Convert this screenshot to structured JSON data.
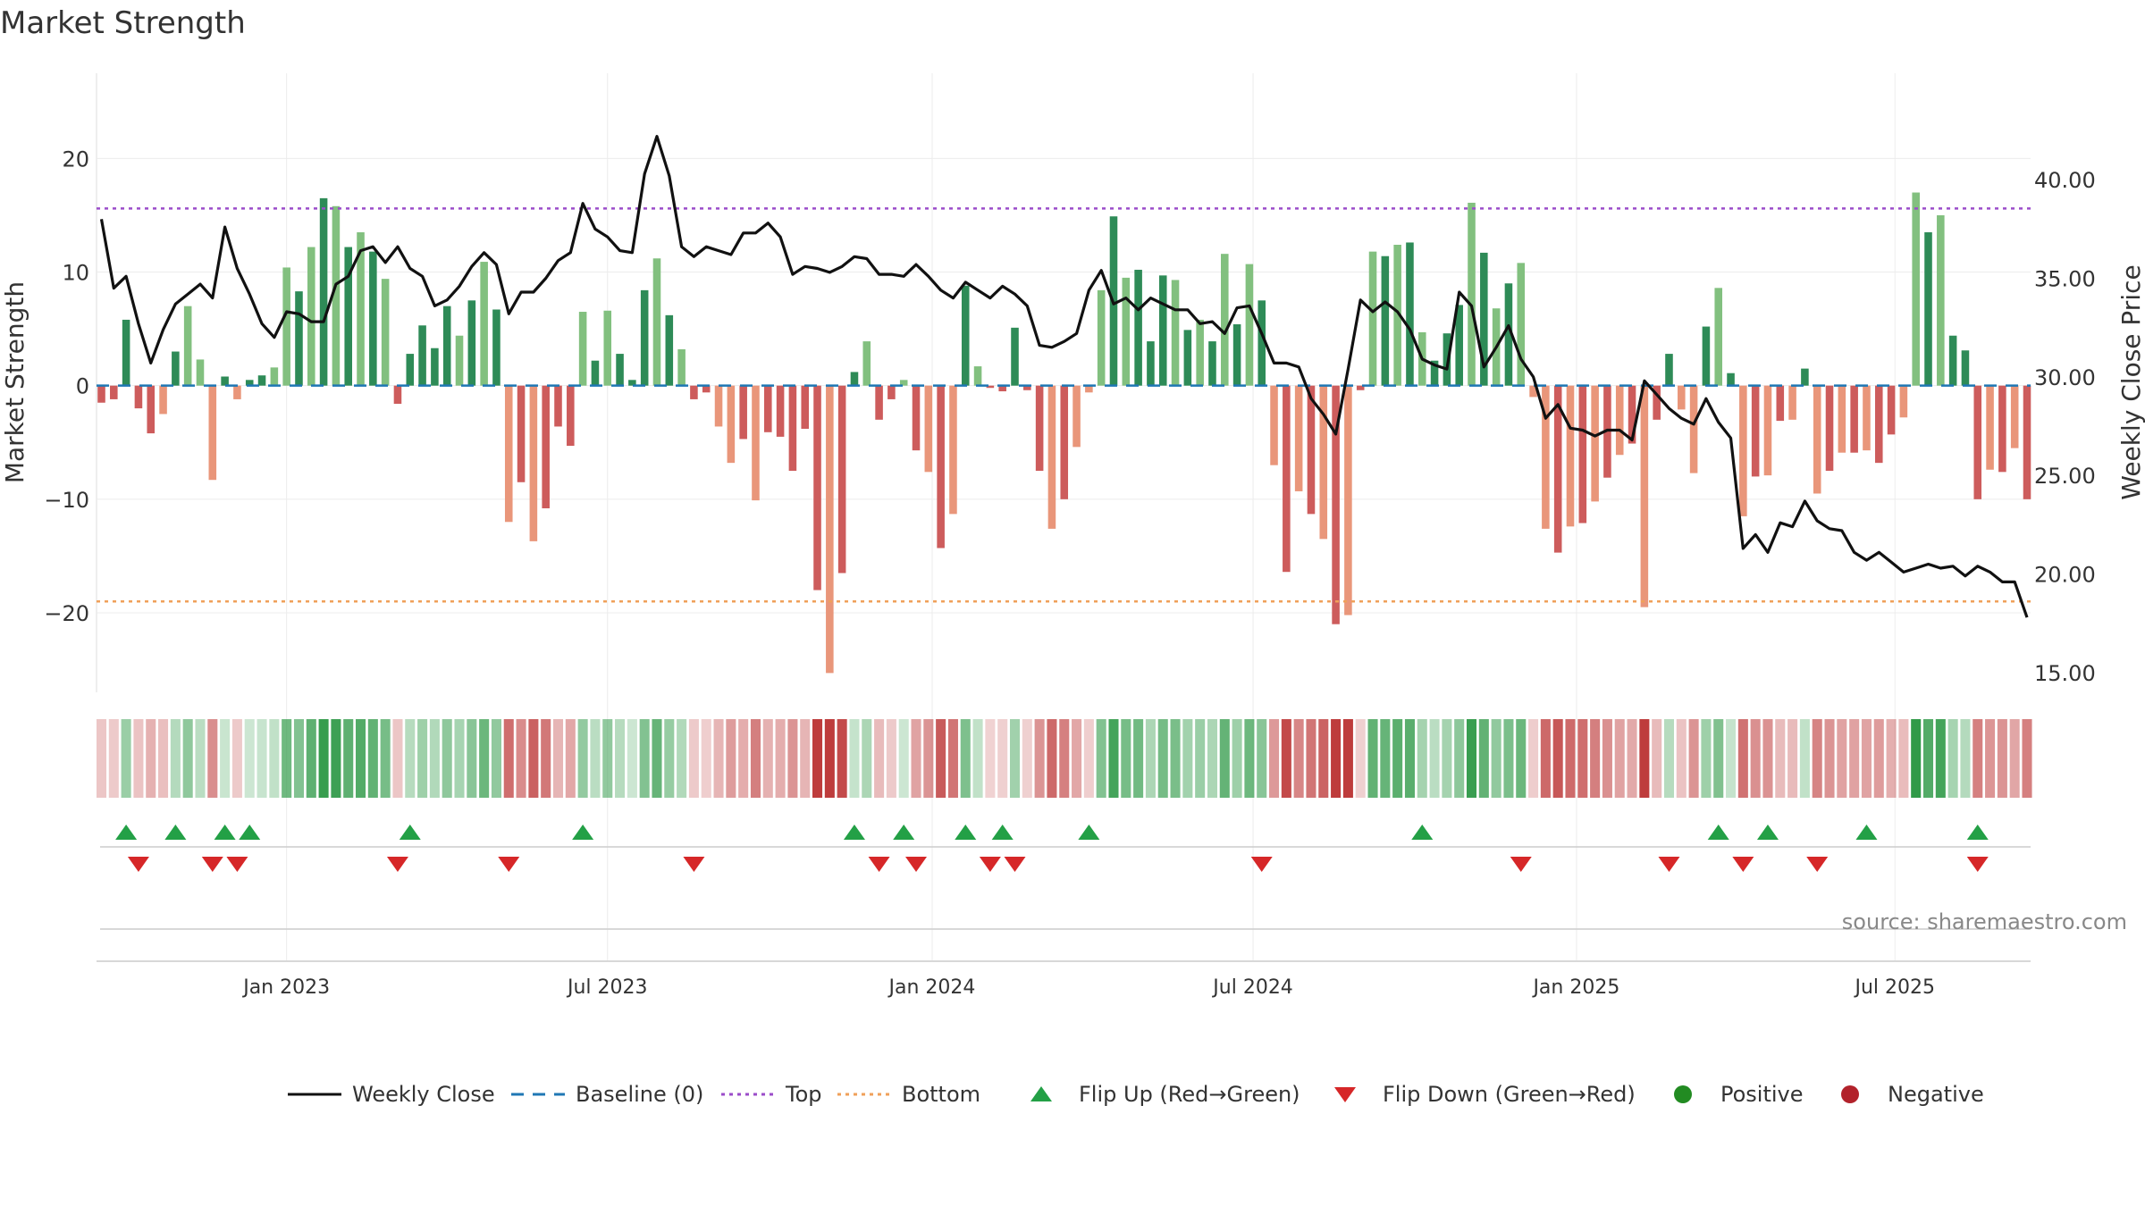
{
  "chart_data": {
    "type": "bar+line",
    "title": "Market Strength",
    "ylabel_left": "Market Strength",
    "ylabel_right": "Weekly Close Price",
    "y_left_range": [
      -27,
      27.5
    ],
    "y_left_ticks": [
      20,
      10,
      0,
      -10,
      -20
    ],
    "y_left_tick_labels": [
      "20",
      "10",
      "0",
      "−10",
      "−20"
    ],
    "y_right_range": [
      14,
      45.4
    ],
    "y_right_ticks": [
      40,
      35,
      30,
      25,
      20,
      15
    ],
    "y_right_tick_labels": [
      "40.00",
      "35.00",
      "30.00",
      "25.00",
      "20.00",
      "15.00"
    ],
    "top_level": 15.6,
    "bottom_level": -19,
    "x_ticks": [
      {
        "label": "Jan 2023",
        "week": 15
      },
      {
        "label": "Jul 2023",
        "week": 41
      },
      {
        "label": "Jan 2024",
        "week": 67.3
      },
      {
        "label": "Jul 2024",
        "week": 93.3
      },
      {
        "label": "Jan 2025",
        "week": 119.5
      },
      {
        "label": "Jul 2025",
        "week": 145.3
      }
    ],
    "series": [
      {
        "name": "Market Strength",
        "values": [
          -1.5,
          -1.2,
          5.8,
          -2,
          -4.2,
          -2.5,
          3,
          7,
          2.3,
          -8.3,
          0.8,
          -1.2,
          0.5,
          0.9,
          1.6,
          10.4,
          8.3,
          12.2,
          16.5,
          15.8,
          12.2,
          13.5,
          11.8,
          9.4,
          -1.6,
          2.8,
          5.3,
          3.3,
          7,
          4.4,
          7.5,
          10.9,
          6.7,
          -12,
          -8.5,
          -13.7,
          -10.8,
          -3.6,
          -5.3,
          6.5,
          2.2,
          6.6,
          2.8,
          0.5,
          8.4,
          11.2,
          6.2,
          3.2,
          -1.2,
          -0.6,
          -3.6,
          -6.8,
          -4.7,
          -10.1,
          -4.1,
          -4.5,
          -7.5,
          -3.8,
          -18,
          -25.3,
          -16.5,
          1.2,
          3.9,
          -3,
          -1.2,
          0.5,
          -5.7,
          -7.6,
          -14.3,
          -11.3,
          8.8,
          1.7,
          -0.2,
          -0.5,
          5.1,
          -0.4,
          -7.5,
          -12.6,
          -10,
          -5.4,
          -0.6,
          8.4,
          14.9,
          9.5,
          10.2,
          3.9,
          9.7,
          9.3,
          4.9,
          5.8,
          3.9,
          11.6,
          5.4,
          10.7,
          7.5,
          -7,
          -16.4,
          -9.3,
          -11.3,
          -13.5,
          -21,
          -20.2,
          -0.4,
          11.8,
          11.4,
          12.4,
          12.6,
          4.7,
          2.2,
          4.6,
          7.1,
          16.1,
          11.7,
          6.8,
          9,
          10.8,
          -1,
          -12.6,
          -14.7,
          -12.4,
          -12.1,
          -10.2,
          -8.1,
          -6.1,
          -5.1,
          -19.5,
          -3,
          2.8,
          -2.1,
          -7.7,
          5.2,
          8.6,
          1.1,
          -11.5,
          -8,
          -7.9,
          -3.1,
          -3,
          1.5,
          -9.5,
          -7.5,
          -5.9,
          -5.9,
          -5.7,
          -6.8,
          -4.3,
          -2.8,
          17,
          13.5,
          15,
          4.4,
          3.1,
          -10,
          -7.4,
          -7.6,
          -5.5,
          -10
        ]
      },
      {
        "name": "Weekly Close",
        "values": [
          38,
          34.5,
          35.1,
          32.7,
          30.7,
          32.4,
          33.7,
          34.2,
          34.7,
          34,
          37.6,
          35.5,
          34.2,
          32.7,
          32,
          33.3,
          33.2,
          32.8,
          32.8,
          34.7,
          35.1,
          36.4,
          36.6,
          35.8,
          36.6,
          35.5,
          35.1,
          33.6,
          33.9,
          34.6,
          35.6,
          36.3,
          35.7,
          33.2,
          34.3,
          34.3,
          35,
          35.9,
          36.3,
          38.8,
          37.5,
          37.1,
          36.4,
          36.3,
          40.3,
          42.2,
          40.2,
          36.6,
          36.1,
          36.6,
          36.4,
          36.2,
          37.3,
          37.3,
          37.8,
          37.1,
          35.2,
          35.6,
          35.5,
          35.3,
          35.6,
          36.1,
          36,
          35.2,
          35.2,
          35.1,
          35.7,
          35.1,
          34.4,
          34,
          34.8,
          34.4,
          34,
          34.6,
          34.2,
          33.6,
          31.6,
          31.5,
          31.8,
          32.2,
          34.4,
          35.4,
          33.7,
          34,
          33.4,
          34,
          33.7,
          33.4,
          33.4,
          32.7,
          32.8,
          32.2,
          33.5,
          33.6,
          32.2,
          30.7,
          30.7,
          30.5,
          28.9,
          28.1,
          27.1,
          30.4,
          33.9,
          33.3,
          33.8,
          33.3,
          32.4,
          30.9,
          30.6,
          30.4,
          34.3,
          33.6,
          30.5,
          31.5,
          32.6,
          30.9,
          30,
          27.9,
          28.6,
          27.4,
          27.3,
          27,
          27.3,
          27.3,
          26.8,
          29.8,
          29.1,
          28.4,
          27.9,
          27.6,
          28.9,
          27.7,
          26.9,
          21.3,
          22,
          21.1,
          22.6,
          22.4,
          23.7,
          22.7,
          22.3,
          22.2,
          21.1,
          20.7,
          21.1,
          20.6,
          20.1,
          20.3,
          20.5,
          20.3,
          20.4,
          19.9,
          20.4,
          20.1,
          19.6,
          19.6,
          17.8
        ]
      }
    ],
    "flip_up_weeks": [
      2,
      6,
      10,
      12,
      25,
      39,
      61,
      65,
      70,
      73,
      80,
      107,
      131,
      135,
      143,
      152
    ],
    "flip_down_weeks": [
      3,
      9,
      11,
      24,
      33,
      48,
      63,
      66,
      72,
      74,
      94,
      115,
      127,
      133,
      139,
      152
    ]
  },
  "legend": {
    "items": [
      {
        "label": "Weekly Close",
        "color": "#111111",
        "kind": "solid"
      },
      {
        "label": "Baseline (0)",
        "color": "#1f77b4",
        "kind": "dashed"
      },
      {
        "label": "Top",
        "color": "#9b4dca",
        "kind": "dotted"
      },
      {
        "label": "Bottom",
        "color": "#f0a05a",
        "kind": "dotted"
      },
      {
        "label": "Flip Up (Red→Green)",
        "color": "#23a046",
        "kind": "up"
      },
      {
        "label": "Flip Down (Green→Red)",
        "color": "#d62728",
        "kind": "down"
      },
      {
        "label": "Positive",
        "color": "#228b22",
        "kind": "dot"
      },
      {
        "label": "Negative",
        "color": "#b2222b",
        "kind": "dot"
      }
    ]
  },
  "source": "source: sharemaestro.com",
  "colors": {
    "pos_strong": "#2e8b57",
    "pos_light": "#82c07f",
    "neg_strong": "#cd5c5c",
    "neg_light": "#e9967a",
    "price_line": "#111111",
    "baseline": "#1f77b4",
    "top_line": "#9b4dca",
    "bottom_line": "#f0a05a",
    "up_marker": "#23a046",
    "down_marker": "#d62728"
  }
}
